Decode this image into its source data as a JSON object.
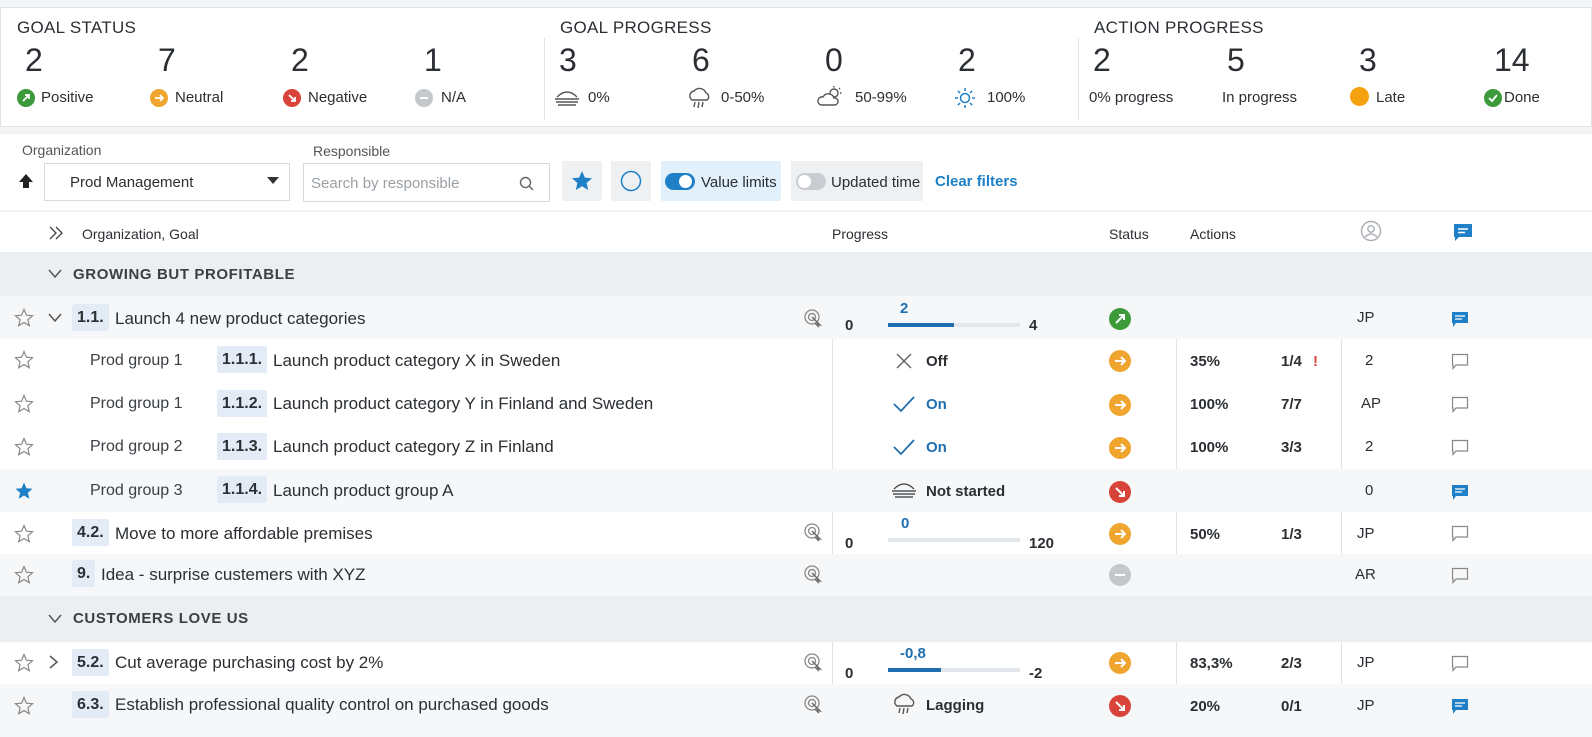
{
  "summary": {
    "goal_status": {
      "title": "GOAL STATUS",
      "items": [
        {
          "value": "2",
          "label": "Positive",
          "color": "#3d9a3b",
          "icon": "arrow-up-right-icon"
        },
        {
          "value": "7",
          "label": "Neutral",
          "color": "#f0a52e",
          "icon": "arrow-right-icon"
        },
        {
          "value": "2",
          "label": "Negative",
          "color": "#d9443a",
          "icon": "arrow-down-right-icon"
        },
        {
          "value": "1",
          "label": "N/A",
          "color": "#bfc3c7",
          "icon": "minus-icon"
        }
      ]
    },
    "goal_progress": {
      "title": "GOAL PROGRESS",
      "items": [
        {
          "value": "3",
          "label": "0%",
          "icon": "fog-icon"
        },
        {
          "value": "6",
          "label": "0-50%",
          "icon": "rain-cloud-icon"
        },
        {
          "value": "0",
          "label": "50-99%",
          "icon": "partly-cloudy-icon"
        },
        {
          "value": "2",
          "label": "100%",
          "icon": "sun-icon"
        }
      ]
    },
    "action_progress": {
      "title": "ACTION PROGRESS",
      "items": [
        {
          "value": "2",
          "label": "0% progress"
        },
        {
          "value": "5",
          "label": "In progress"
        },
        {
          "value": "3",
          "label": "Late",
          "color": "#f5a00f"
        },
        {
          "value": "14",
          "label": "Done",
          "color": "#3d9a3b"
        }
      ]
    }
  },
  "filters": {
    "organization_label": "Organization",
    "organization_value": "Prod Management",
    "responsible_label": "Responsible",
    "responsible_placeholder": "Search by responsible",
    "value_limits_label": "Value limits",
    "updated_time_label": "Updated time",
    "clear_label": "Clear filters"
  },
  "table": {
    "headers": {
      "goal": "Organization, Goal",
      "progress": "Progress",
      "status": "Status",
      "actions": "Actions"
    },
    "groups": [
      {
        "title": "GROWING BUT PROFITABLE"
      },
      {
        "title": "CUSTOMERS LOVE US"
      }
    ],
    "rows": [
      {
        "code": "1.1.",
        "title": "Launch 4 new product categories",
        "min": "0",
        "current": "2",
        "max": "4",
        "progress_fraction": 0.5,
        "status": "positive",
        "resp": "JP"
      },
      {
        "org": "Prod group 1",
        "code": "1.1.1.",
        "title": "Launch product category X in Sweden",
        "state": "Off",
        "status": "neutral",
        "pct": "35%",
        "ratio": "1/4",
        "flag": "!",
        "resp": "2"
      },
      {
        "org": "Prod group 1",
        "code": "1.1.2.",
        "title": "Launch product category Y in Finland and Sweden",
        "state": "On",
        "status": "neutral",
        "pct": "100%",
        "ratio": "7/7",
        "resp": "AP"
      },
      {
        "org": "Prod group 2",
        "code": "1.1.3.",
        "title": "Launch product category Z in Finland",
        "state": "On",
        "status": "neutral",
        "pct": "100%",
        "ratio": "3/3",
        "resp": "2"
      },
      {
        "org": "Prod group 3",
        "code": "1.1.4.",
        "title": "Launch product group A",
        "state": "Not started",
        "status": "negative",
        "resp": "0"
      },
      {
        "code": "4.2.",
        "title": "Move to more affordable premises",
        "min": "0",
        "current": "0",
        "max": "120",
        "progress_fraction": 0.0,
        "status": "neutral",
        "pct": "50%",
        "ratio": "1/3",
        "resp": "JP"
      },
      {
        "code": "9.",
        "title": "Idea - surprise custemers with XYZ",
        "status": "na",
        "resp": "AR"
      },
      {
        "code": "5.2.",
        "title": "Cut average purchasing cost by 2%",
        "min": "0",
        "current": "-0,8",
        "max": "-2",
        "progress_fraction": 0.4,
        "status": "neutral",
        "pct": "83,3%",
        "ratio": "2/3",
        "resp": "JP"
      },
      {
        "code": "6.3.",
        "title": "Establish professional quality control on purchased goods",
        "state": "Lagging",
        "status": "negative",
        "pct": "20%",
        "ratio": "0/1",
        "resp": "JP"
      }
    ]
  },
  "colors": {
    "accent": "#1f80c8",
    "positive": "#3d9a3b",
    "neutral": "#f0a52e",
    "negative": "#d9443a",
    "na": "#c4c7cb"
  }
}
